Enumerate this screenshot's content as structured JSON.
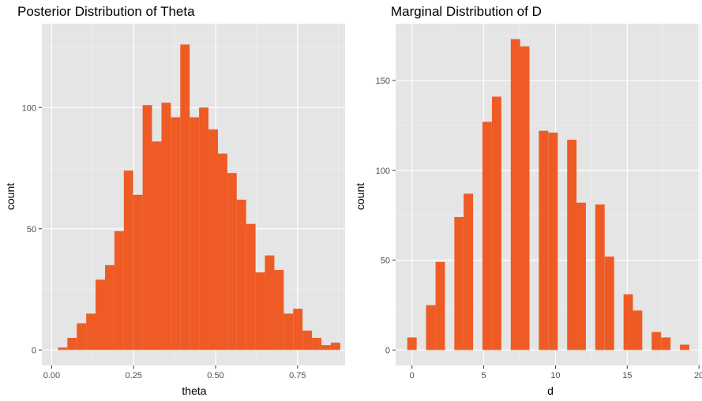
{
  "colors": {
    "panel_bg": "#e5e5e5",
    "grid_major": "#ffffff",
    "grid_minor": "#f2f2f2",
    "bar_fill": "#ef5b25",
    "tick": "#333333"
  },
  "chart_data": [
    {
      "type": "bar",
      "title": "Posterior Distribution of Theta",
      "xlabel": "theta",
      "ylabel": "count",
      "xlim": [
        -0.03,
        0.895
      ],
      "ylim": [
        -6.4,
        134.6
      ],
      "xticks": [
        0.0,
        0.25,
        0.5,
        0.75
      ],
      "xtick_labels": [
        "0.00",
        "0.25",
        "0.50",
        "0.75"
      ],
      "xminor": [
        0.125,
        0.375,
        0.625,
        0.875
      ],
      "yticks": [
        0,
        50,
        100
      ],
      "ytick_labels": [
        "0",
        "50",
        "100"
      ],
      "yminor": [
        25,
        75,
        125
      ],
      "bin_width": 0.0287,
      "bins": [
        {
          "x": 0.0335,
          "value": 1
        },
        {
          "x": 0.0622,
          "value": 5
        },
        {
          "x": 0.0909,
          "value": 11
        },
        {
          "x": 0.1196,
          "value": 15
        },
        {
          "x": 0.1483,
          "value": 29
        },
        {
          "x": 0.177,
          "value": 35
        },
        {
          "x": 0.2057,
          "value": 49
        },
        {
          "x": 0.2344,
          "value": 74
        },
        {
          "x": 0.2631,
          "value": 64
        },
        {
          "x": 0.2918,
          "value": 101
        },
        {
          "x": 0.3205,
          "value": 86
        },
        {
          "x": 0.3492,
          "value": 102
        },
        {
          "x": 0.3779,
          "value": 96
        },
        {
          "x": 0.4066,
          "value": 126
        },
        {
          "x": 0.4353,
          "value": 96
        },
        {
          "x": 0.464,
          "value": 100
        },
        {
          "x": 0.4927,
          "value": 91
        },
        {
          "x": 0.5214,
          "value": 81
        },
        {
          "x": 0.5501,
          "value": 73
        },
        {
          "x": 0.5788,
          "value": 62
        },
        {
          "x": 0.6075,
          "value": 52
        },
        {
          "x": 0.6362,
          "value": 32
        },
        {
          "x": 0.6649,
          "value": 39
        },
        {
          "x": 0.6936,
          "value": 33
        },
        {
          "x": 0.7223,
          "value": 15
        },
        {
          "x": 0.751,
          "value": 17
        },
        {
          "x": 0.7797,
          "value": 8
        },
        {
          "x": 0.8084,
          "value": 5
        },
        {
          "x": 0.8371,
          "value": 2
        },
        {
          "x": 0.8658,
          "value": 3
        }
      ]
    },
    {
      "type": "bar",
      "title": "Marginal Distribution of D",
      "xlabel": "d",
      "ylabel": "count",
      "xlim": [
        -1.14,
        20.1
      ],
      "ylim": [
        -8.6,
        181.6
      ],
      "xticks": [
        0,
        5,
        10,
        15,
        20
      ],
      "xtick_labels": [
        "0",
        "5",
        "10",
        "15",
        "20"
      ],
      "xminor": [
        2.5,
        7.5,
        12.5,
        17.5
      ],
      "yticks": [
        0,
        50,
        100,
        150
      ],
      "ytick_labels": [
        "0",
        "50",
        "100",
        "150"
      ],
      "yminor": [
        25,
        75,
        125,
        175
      ],
      "bin_width": 0.655,
      "bins": [
        {
          "x": 0.0,
          "value": 7
        },
        {
          "x": 1.31,
          "value": 25
        },
        {
          "x": 1.97,
          "value": 49
        },
        {
          "x": 3.28,
          "value": 74
        },
        {
          "x": 3.93,
          "value": 87
        },
        {
          "x": 5.24,
          "value": 127
        },
        {
          "x": 5.9,
          "value": 141
        },
        {
          "x": 7.21,
          "value": 173
        },
        {
          "x": 7.86,
          "value": 169
        },
        {
          "x": 9.17,
          "value": 122
        },
        {
          "x": 9.83,
          "value": 121
        },
        {
          "x": 11.14,
          "value": 117
        },
        {
          "x": 11.79,
          "value": 82
        },
        {
          "x": 13.1,
          "value": 81
        },
        {
          "x": 13.76,
          "value": 52
        },
        {
          "x": 15.07,
          "value": 31
        },
        {
          "x": 15.72,
          "value": 22
        },
        {
          "x": 17.03,
          "value": 10
        },
        {
          "x": 17.69,
          "value": 7
        },
        {
          "x": 19.0,
          "value": 3
        }
      ]
    }
  ]
}
